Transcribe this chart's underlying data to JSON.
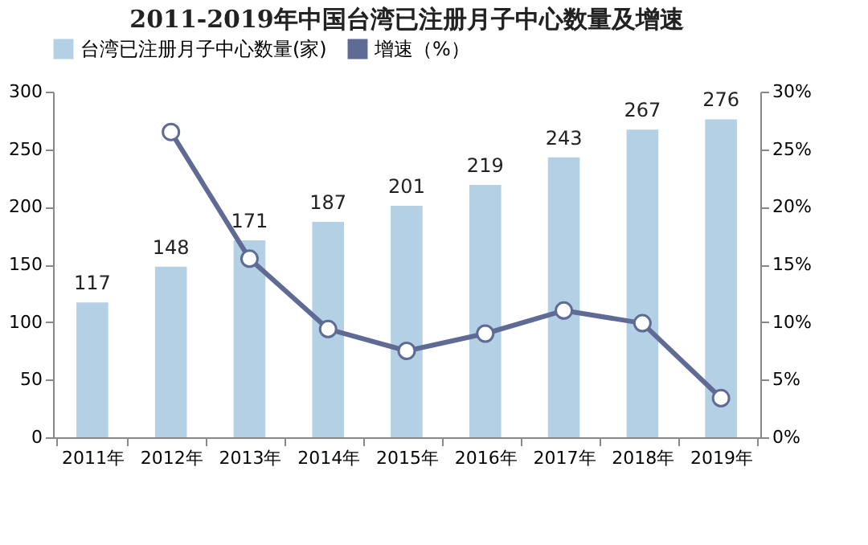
{
  "chart_data": {
    "type": "bar",
    "title": "2011-2019年中国台湾已注册月子中心数量及增速",
    "categories": [
      "2011年",
      "2012年",
      "2013年",
      "2014年",
      "2015年",
      "2016年",
      "2017年",
      "2018年",
      "2019年"
    ],
    "series": [
      {
        "name": "台湾已注册月子中心数量(家)",
        "color": "#b4d0e4",
        "values": [
          117,
          148,
          171,
          187,
          201,
          219,
          243,
          267,
          276
        ],
        "value_labels": [
          "117",
          "148",
          "171",
          "187",
          "201",
          "219",
          "243",
          "267",
          "276"
        ]
      },
      {
        "name": "增速（%）",
        "type": "line",
        "axis": "y2",
        "color": "#5f6b94",
        "marker": "circle",
        "values": [
          null,
          26.5,
          15.5,
          9.4,
          7.5,
          9.0,
          11.0,
          9.9,
          3.4
        ]
      }
    ],
    "ylim": [
      0,
      300
    ],
    "yticks": [
      0,
      50,
      100,
      150,
      200,
      250,
      300
    ],
    "y2lim": [
      0,
      30
    ],
    "y2ticks": [
      {
        "value": 0,
        "label": "0%"
      },
      {
        "value": 5,
        "label": "5%"
      },
      {
        "value": 10,
        "label": "10%"
      },
      {
        "value": 15,
        "label": "15%"
      },
      {
        "value": 20,
        "label": "20%"
      },
      {
        "value": 25,
        "label": "25%"
      },
      {
        "value": 30,
        "label": "30%"
      }
    ],
    "grid": false,
    "legend": "top"
  }
}
